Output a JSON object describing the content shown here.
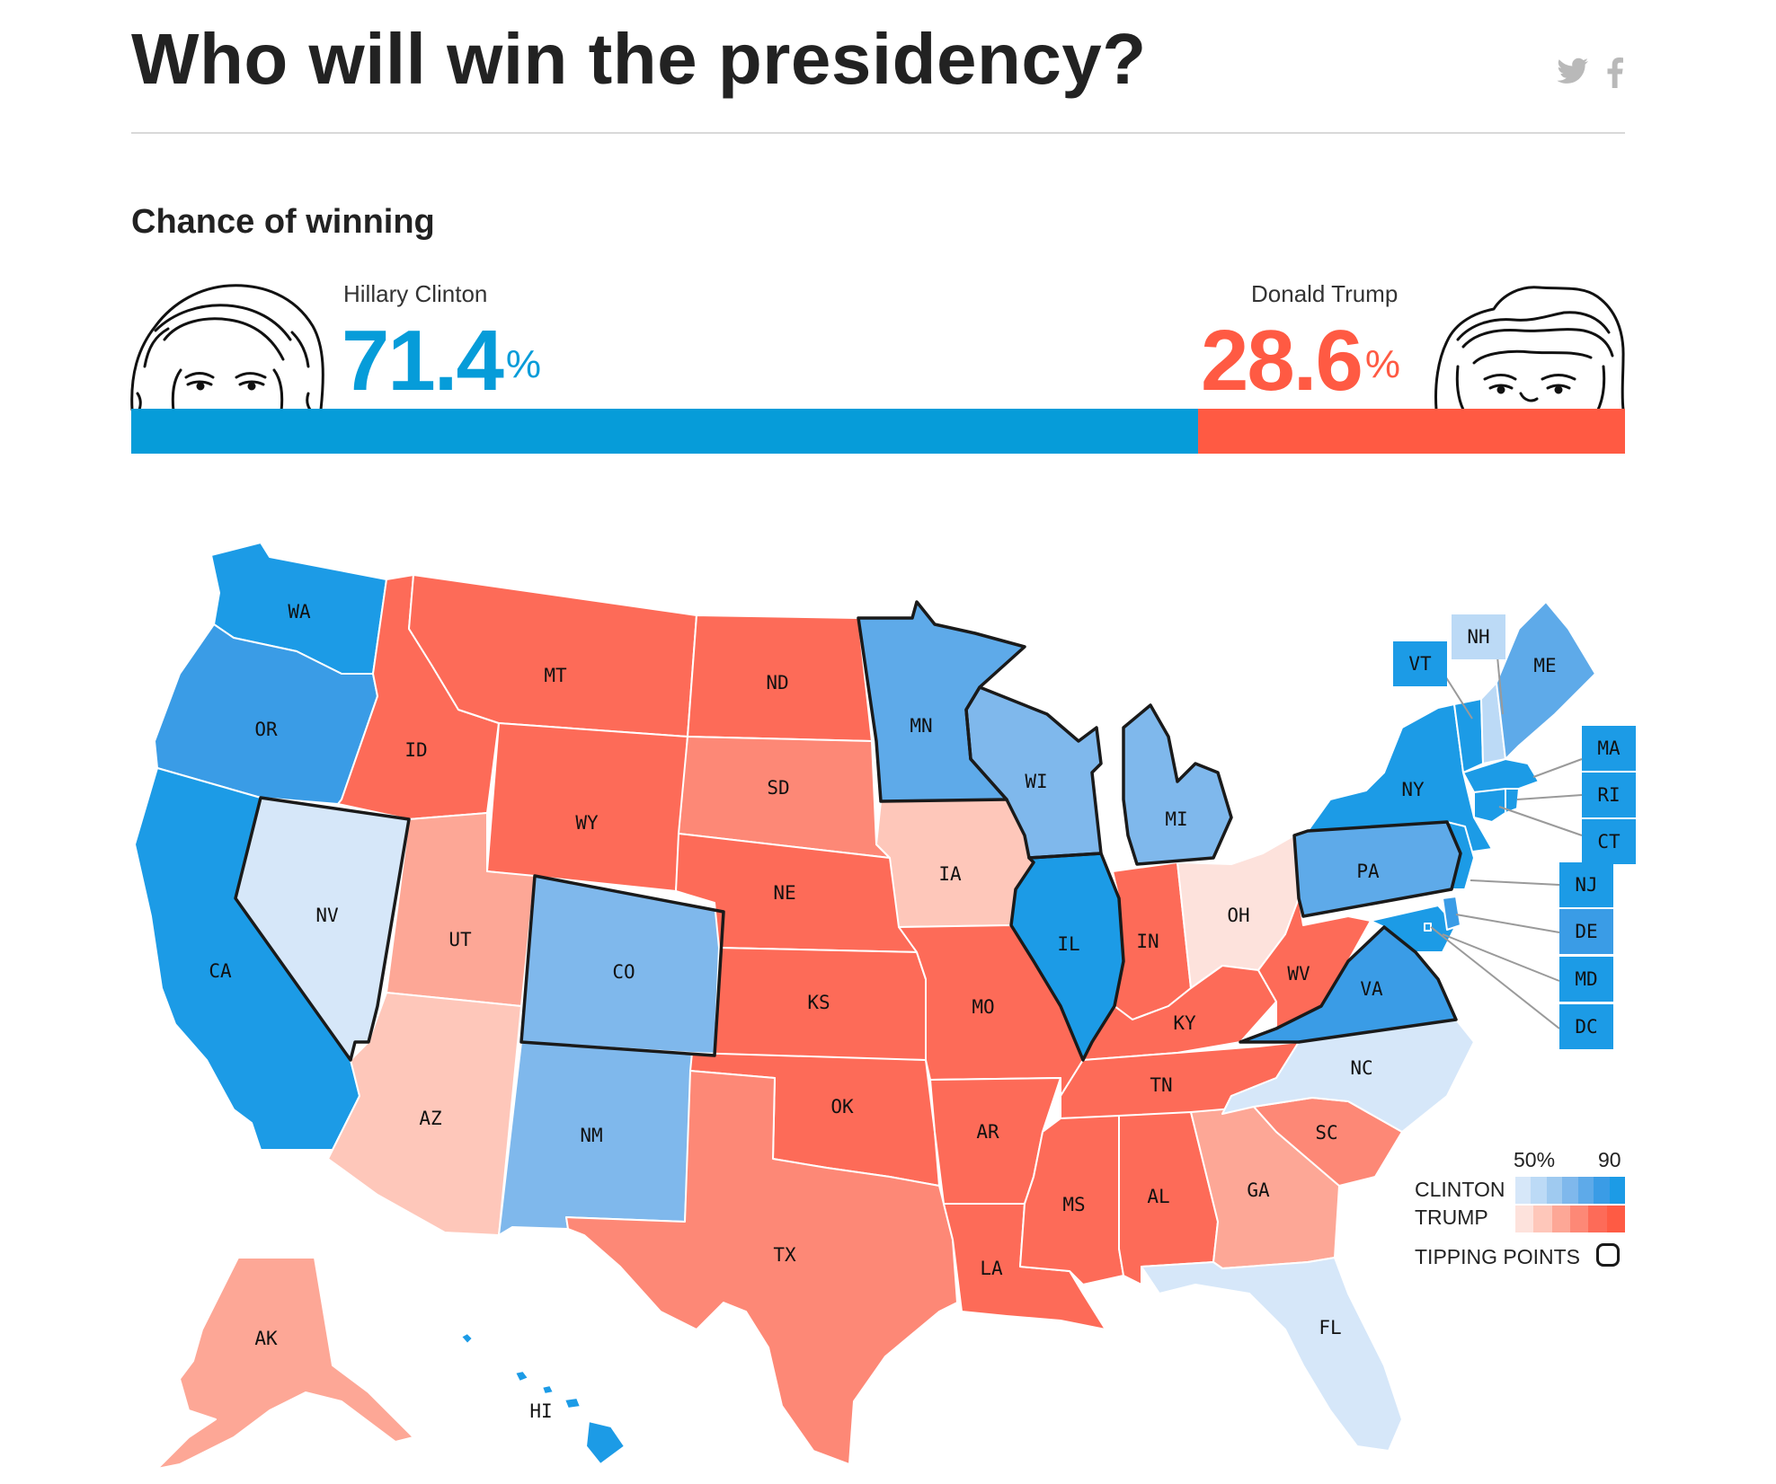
{
  "header": {
    "title": "Who will win the presidency?",
    "share_icons": [
      "twitter-icon",
      "facebook-icon"
    ]
  },
  "section": {
    "subtitle": "Chance of winning"
  },
  "candidates": {
    "clinton": {
      "name": "Hillary Clinton",
      "chance": "71.4",
      "pct_sign": "%",
      "value": 71.4,
      "color": "#069cd9"
    },
    "trump": {
      "name": "Donald Trump",
      "chance": "28.6",
      "pct_sign": "%",
      "value": 28.6,
      "color": "#ff5a43"
    }
  },
  "colors": {
    "clinton_scale": [
      "#d6e7f9",
      "#bcdaf6",
      "#9fcaf0",
      "#7fb8ec",
      "#5eaae9",
      "#3a9ce6",
      "#1c9be6"
    ],
    "trump_scale": [
      "#fde2dc",
      "#fec7ba",
      "#fda796",
      "#fd8876",
      "#fd6b58",
      "#fe5b44"
    ],
    "tipping_border": "#1a1a1a"
  },
  "states": {
    "WA": "WA",
    "OR": "OR",
    "CA": "CA",
    "NV": "NV",
    "ID": "ID",
    "MT": "MT",
    "WY": "WY",
    "UT": "UT",
    "AZ": "AZ",
    "CO": "CO",
    "NM": "NM",
    "ND": "ND",
    "SD": "SD",
    "NE": "NE",
    "KS": "KS",
    "OK": "OK",
    "TX": "TX",
    "MN": "MN",
    "IA": "IA",
    "MO": "MO",
    "AR": "AR",
    "LA": "LA",
    "WI": "WI",
    "IL": "IL",
    "MI": "MI",
    "IN": "IN",
    "OH": "OH",
    "KY": "KY",
    "TN": "TN",
    "MS": "MS",
    "AL": "AL",
    "GA": "GA",
    "FL": "FL",
    "SC": "SC",
    "NC": "NC",
    "VA": "VA",
    "WV": "WV",
    "PA": "PA",
    "NY": "NY",
    "ME": "ME",
    "AK": "AK",
    "HI": "HI",
    "VT": "VT",
    "NH": "NH",
    "MA": "MA",
    "RI": "RI",
    "CT": "CT",
    "NJ": "NJ",
    "DE": "DE",
    "MD": "MD",
    "DC": "DC"
  },
  "legend": {
    "low": "50%",
    "high": "90",
    "clinton_label": "CLINTON",
    "trump_label": "TRUMP",
    "tipping_label": "TIPPING POINTS"
  }
}
